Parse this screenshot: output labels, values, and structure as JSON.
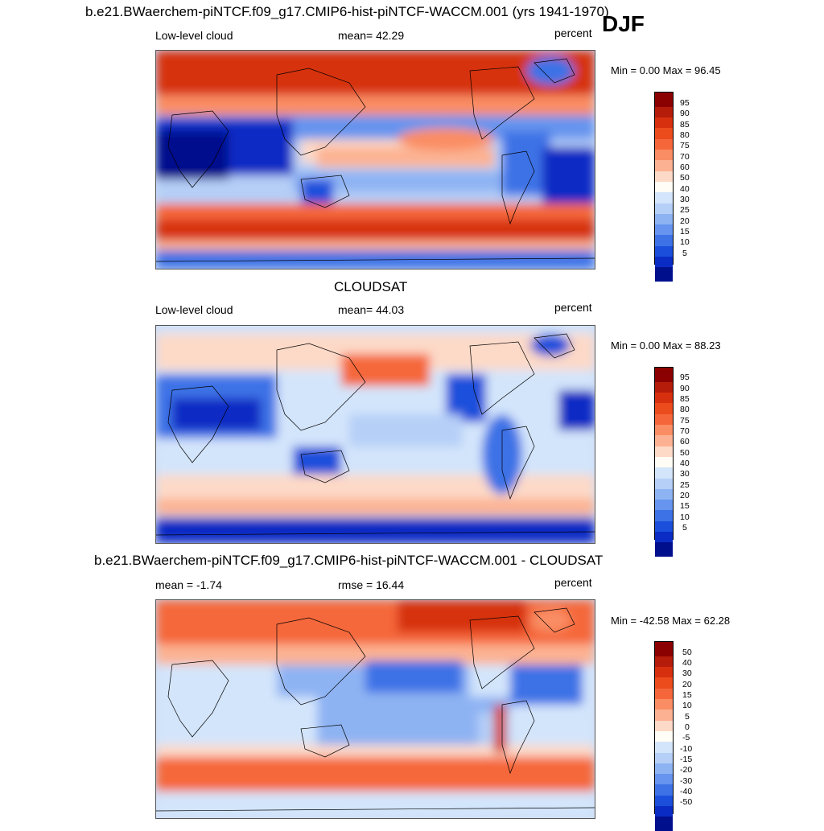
{
  "season": "DJF",
  "panels": [
    {
      "title": "b.e21.BWaerchem-piNTCF.f09_g17.CMIP6-hist-piNTCF-WACCM.001 (yrs 1941-1970)",
      "left_label": "Low-level cloud",
      "center_label": "mean=  42.29",
      "units": "percent",
      "minmax": "Min =   0.00 Max =  96.45",
      "colorbar_ticks": [
        "95",
        "90",
        "85",
        "80",
        "75",
        "70",
        "60",
        "50",
        "40",
        "30",
        "25",
        "20",
        "15",
        "10",
        "5"
      ],
      "colorbar_colors": [
        "#8b0000",
        "#b51c0a",
        "#d6300e",
        "#ec4b1b",
        "#f5673a",
        "#fa8d63",
        "#fcb292",
        "#fdd9c7",
        "#fffdf5",
        "#d3e5fb",
        "#b5cff7",
        "#8eb3f3",
        "#6694ee",
        "#3d72e6",
        "#1b4fdb",
        "#0a2cc4",
        "#000f8c"
      ]
    },
    {
      "title": "CLOUDSAT",
      "left_label": "Low-level cloud",
      "center_label": "mean=  44.03",
      "units": "percent",
      "minmax": "Min =   0.00 Max =  88.23",
      "colorbar_ticks": [
        "95",
        "90",
        "85",
        "80",
        "75",
        "70",
        "60",
        "50",
        "40",
        "30",
        "25",
        "20",
        "15",
        "10",
        "5"
      ],
      "colorbar_colors": [
        "#8b0000",
        "#b51c0a",
        "#d6300e",
        "#ec4b1b",
        "#f5673a",
        "#fa8d63",
        "#fcb292",
        "#fdd9c7",
        "#fffdf5",
        "#d3e5fb",
        "#b5cff7",
        "#8eb3f3",
        "#6694ee",
        "#3d72e6",
        "#1b4fdb",
        "#0a2cc4",
        "#000f8c"
      ]
    },
    {
      "title": "b.e21.BWaerchem-piNTCF.f09_g17.CMIP6-hist-piNTCF-WACCM.001 - CLOUDSAT",
      "left_label": "mean =  -1.74",
      "center_label": "rmse =  16.44",
      "units": "percent",
      "minmax": "Min = -42.58 Max =  62.28",
      "colorbar_ticks": [
        "50",
        "40",
        "30",
        "20",
        "15",
        "10",
        "5",
        "0",
        "-5",
        "-10",
        "-15",
        "-20",
        "-30",
        "-40",
        "-50"
      ],
      "colorbar_colors": [
        "#8b0000",
        "#b51c0a",
        "#d6300e",
        "#ec4b1b",
        "#f5673a",
        "#fa8d63",
        "#fcb292",
        "#fdd9c7",
        "#fffdf5",
        "#d3e5fb",
        "#b5cff7",
        "#8eb3f3",
        "#6694ee",
        "#3d72e6",
        "#1b4fdb",
        "#0a2cc4",
        "#000f8c"
      ]
    }
  ]
}
